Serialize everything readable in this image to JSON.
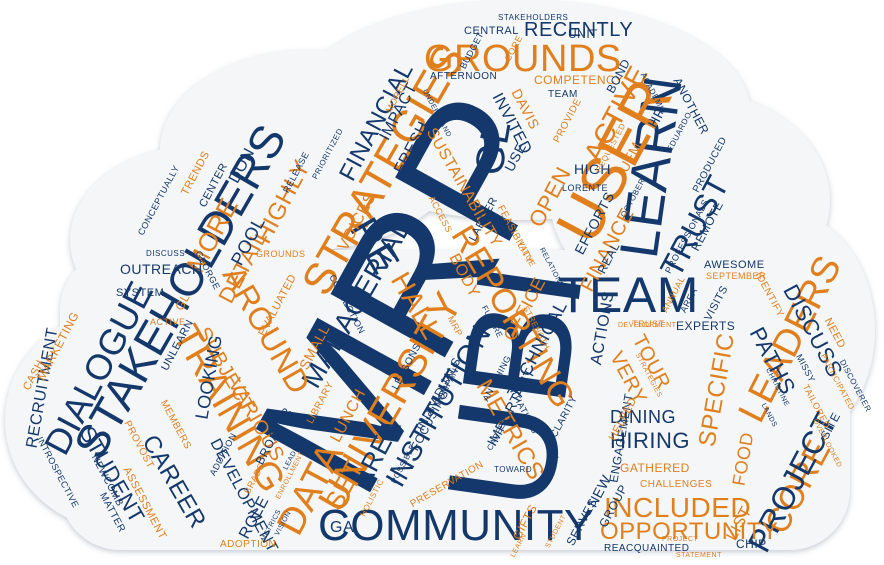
{
  "colors": {
    "navy": "#14386b",
    "orange": "#e07f1c",
    "cloud": "#f4f6f8",
    "cloud_shadow": "#d9dde2"
  },
  "words": {
    "mrp": "MRP",
    "ubi": "UBI",
    "community": "COMMUNITY",
    "stakeholders": "STAKEHOLDERS",
    "team": "TEAM",
    "learn": "LEARN",
    "user": "USER",
    "grounds": "GROUNDS",
    "strategies": "STRATEGIES",
    "university": "UNIVERSITY",
    "leaders": "LEADERS",
    "reporting": "REPORTING",
    "training": "TRAINING",
    "data": "DATA",
    "dialogue": "DIALOGUE",
    "institution": "INSTITUTION",
    "managerial": "MANAGERIAL",
    "around": "AROUND",
    "core": "CORE",
    "project": "PROJECT",
    "trust": "TRUST",
    "active": "ACTIVE",
    "gl": "GL",
    "re": "RE",
    "hall": "HALL",
    "metrics": "METRICS",
    "area": "AREA",
    "set": "SET",
    "included": "INCLUDED",
    "opportunity": "OPPORTUNITY",
    "career": "CAREER",
    "student": "STUDENT",
    "financial": "FINANCIAL",
    "recently": "RECENTLY",
    "highly": "HIGHLY",
    "more": "MORE",
    "detail": "DETAIL",
    "pool": "POOL",
    "specific": "SPECIFIC",
    "hiring": "HIRING",
    "dining": "DINING",
    "paths": "PATHS",
    "discuss": "DISCUSS",
    "tour": "TOUR",
    "very": "VERY",
    "finance": "FINANCE",
    "open": "OPEN",
    "sustainability": "SUSTAINABILITY",
    "voices": "VOICES",
    "technical": "TECHNICAL",
    "office": "OFFICE",
    "various": "VARIOUS",
    "subject": "SUBJECT",
    "recruitment": "RECRUITMENT",
    "don": "DON",
    "looking": "LOOKING",
    "lunch": "LUNCH",
    "invited": "INVITED",
    "use": "USE",
    "davis": "DAVIS",
    "fresh": "FRESH",
    "body": "BODY",
    "actions": "ACTIONS",
    "important": "IMPORTANT",
    "development": "DEVELOPMENT",
    "role": "ROLE",
    "ga": "GA",
    "list": "LIST",
    "food": "FOOD",
    "efforts": "EFFORTS",
    "high": "HIGH",
    "impact": "IMPACT",
    "competency": "COMPETENCY",
    "unit": "UNIT",
    "central": "CENTRAL",
    "stakeholders_small": "STAKEHOLDERS",
    "team_small": "TEAM",
    "bond": "BOND",
    "another": "ANOTHER",
    "afternoon": "AFTERNOON",
    "provide": "PROVIDE",
    "lorente": "LORENTE",
    "ufm": "UFM",
    "hr": "HR",
    "produced": "PRODUCED",
    "remote": "REMOTE",
    "real": "REAL",
    "awesome": "AWESOME",
    "september": "SEPTEMBER",
    "visits": "VISITS",
    "experts": "EXPERTS",
    "engagement": "ENGAGEMENT",
    "gathered": "GATHERED",
    "challenges": "CHALLENGES",
    "new": "NEW",
    "serves": "SERVES",
    "chip": "CHIP",
    "reacquainted": "REACQUAINTED",
    "gifts": "GIFTS",
    "group": "GROUP",
    "helped": "HELPED",
    "focusing": "FOCUSING",
    "individuals": "INDIVIDUALS",
    "company": "COMPANY",
    "small": "SMALL",
    "evaluated": "EVALUATED",
    "outreach": "OUTREACH",
    "system": "SYSTEM",
    "cash": "CASH",
    "marketing": "MARKETING",
    "unlearn": "UNLEARN",
    "introspective": "INTROSPECTIVE",
    "matter": "MATTER",
    "newcomb": "NEWCOMB",
    "assessment": "ASSESSMENT",
    "adoption": "ADOPTION",
    "members": "MEMBERS",
    "provost": "PROVOST",
    "broader": "BROADER",
    "addition": "ADDITION",
    "center": "CENTER",
    "trends": "TRENDS",
    "conceptually": "CONCEPTUALLY",
    "release": "RELEASE",
    "morell": "MORELL",
    "budget": "BUDGET",
    "core_small": "CORE",
    "prioritized": "PRIORITIZED",
    "site": "SITE",
    "need": "NEED",
    "identify": "IDENTIFY",
    "missy": "MISSY",
    "tailored": "TAILORED",
    "participated": "PARTICIPATED",
    "discoverer": "DISCOVERER",
    "trust_small": "TRUST",
    "area_small": "AREA",
    "annual": "ANNUAL",
    "professionals": "PROFESSIONALS",
    "october": "OCTOBER",
    "eduardo": "EDUARDO",
    "academic": "ACADEMIC",
    "requested": "REQUESTED",
    "feasibility": "FEASIBILITY",
    "value": "VALUE",
    "larger": "LARGER",
    "access": "ACCESS",
    "understand": "UNDERSTAND",
    "connection": "CONNECTION",
    "grounds_small": "GROUNDS",
    "george": "GEORGE",
    "library": "LIBRARY",
    "lessons": "LESSONS",
    "future": "FUTURE",
    "clarity": "CLARITY",
    "anything": "ANYTHING",
    "initiatives": "INITIATIVES",
    "strength": "STRENGTH",
    "career_small": "CAREER",
    "preservation": "PRESERVATION",
    "holistic": "HOLISTIC",
    "leaders_small": "LEADERS",
    "brads": "BRADS",
    "metrics_small": "METRICS",
    "statement": "STATEMENT",
    "learn_small": "LEARN",
    "project_small": "PROJECT",
    "student_small": "STUDENT",
    "ga_small": "GL",
    "active_small": "ACTIVE",
    "discuss_small": "DISCUSS",
    "mrp_small": "MRP",
    "relationship": "RELATIONSHIP",
    "christine": "CHRISTINE",
    "lands": "LANDS",
    "overlooked": "OVERLOOKED",
    "strategies_small": "STRATEGIES",
    "development_small": "DEVELOPMENT",
    "possible": "POSSIBLE",
    "toward": "TOWARD",
    "balance": "BALANCE",
    "enrollment": "ENROLLMENT",
    "vision": "VISION"
  }
}
